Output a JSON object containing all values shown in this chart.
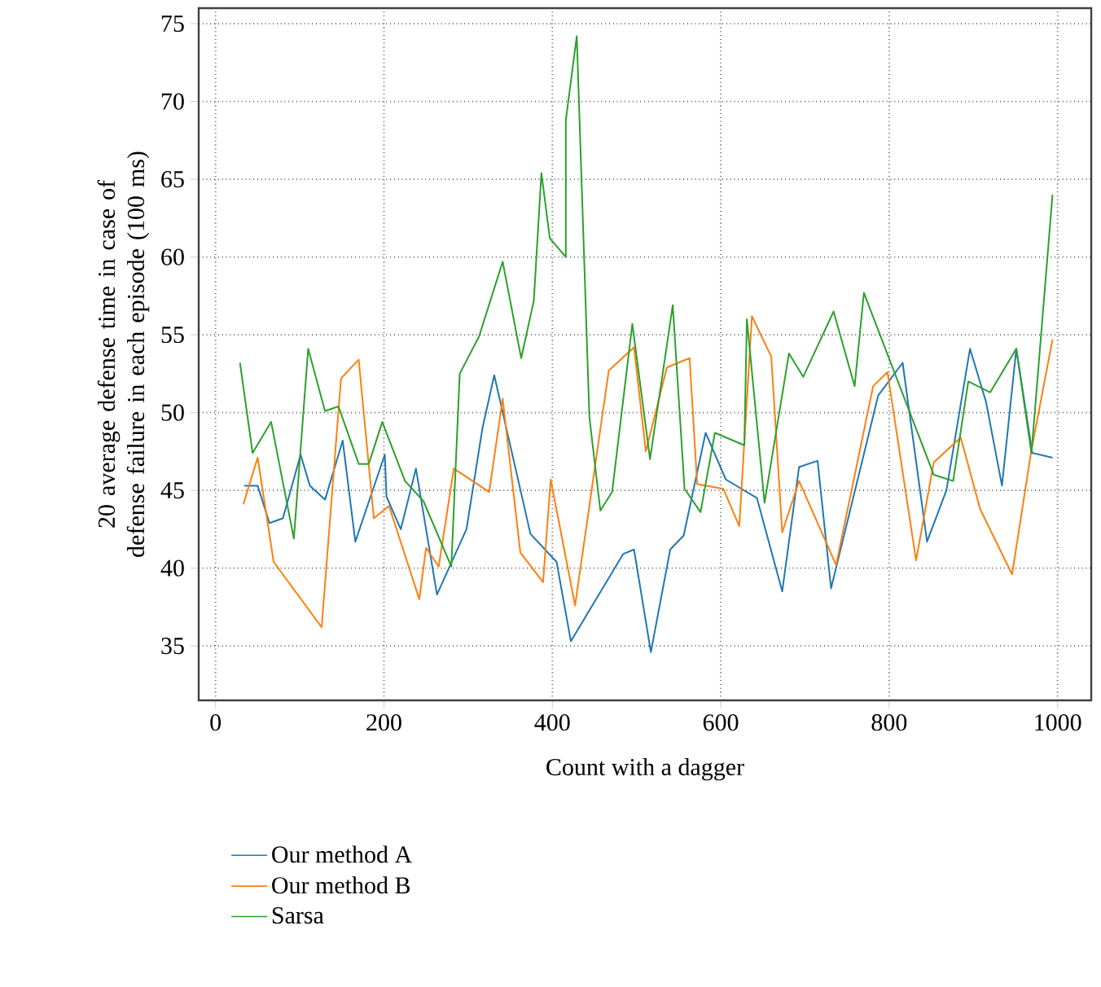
{
  "chart_data": {
    "type": "line",
    "xlabel": "Count with a dagger",
    "ylabel": "20 average defense time in case of defense failure in each episode (100 ms)",
    "xlim": [
      -20,
      1040
    ],
    "ylim": [
      31.5,
      76
    ],
    "xticks": [
      0,
      200,
      400,
      600,
      800,
      1000
    ],
    "yticks": [
      35,
      40,
      45,
      50,
      55,
      60,
      65,
      70,
      75
    ],
    "grid": true,
    "legend": "bottom",
    "marker": "none",
    "line_style": "solid",
    "series": [
      {
        "name": "Our method A",
        "color": "#1f77b4",
        "x": [
          34,
          50,
          64,
          80,
          101,
          112,
          130,
          151,
          166,
          201,
          203,
          220,
          238,
          263,
          298,
          317,
          331,
          374,
          405,
          422,
          484,
          497,
          517,
          540,
          556,
          582,
          606,
          643,
          673,
          693,
          715,
          731,
          787,
          816,
          845,
          868,
          896,
          915,
          934,
          951,
          970,
          994
        ],
        "values": [
          45.3,
          45.3,
          42.9,
          43.2,
          47.3,
          45.3,
          44.4,
          48.2,
          41.7,
          47.3,
          44.6,
          42.5,
          46.4,
          38.3,
          42.5,
          49.0,
          52.4,
          42.2,
          40.4,
          35.3,
          40.9,
          41.2,
          34.6,
          41.2,
          42.1,
          48.7,
          45.7,
          44.5,
          38.5,
          46.5,
          46.9,
          38.7,
          51.1,
          53.2,
          41.7,
          45.0,
          54.1,
          50.7,
          45.3,
          54.1,
          47.4,
          47.1
        ]
      },
      {
        "name": "Our method B",
        "color": "#ff7f0e",
        "x": [
          33,
          50,
          69,
          126,
          149,
          170,
          188,
          206,
          242,
          250,
          265,
          283,
          325,
          341,
          362,
          389,
          398,
          427,
          467,
          497,
          511,
          536,
          563,
          572,
          603,
          622,
          637,
          660,
          673,
          693,
          737,
          781,
          798,
          832,
          853,
          885,
          908,
          946,
          969,
          994
        ],
        "values": [
          44.1,
          47.1,
          40.4,
          36.2,
          52.2,
          53.4,
          43.2,
          44.0,
          38.0,
          41.3,
          40.1,
          46.4,
          44.9,
          50.9,
          41.0,
          39.1,
          45.7,
          37.6,
          52.7,
          54.2,
          47.5,
          52.9,
          53.5,
          45.4,
          45.1,
          42.7,
          56.2,
          53.6,
          42.3,
          45.6,
          40.2,
          51.7,
          52.6,
          40.5,
          46.8,
          48.4,
          43.8,
          39.6,
          47.6,
          54.7
        ]
      },
      {
        "name": "Sarsa",
        "color": "#2ca02c",
        "x": [
          29,
          44,
          66,
          93,
          110,
          130,
          146,
          170,
          182,
          198,
          225,
          247,
          280,
          290,
          313,
          341,
          363,
          378,
          387,
          397,
          416,
          416,
          429,
          444,
          457,
          471,
          495,
          516,
          543,
          557,
          576,
          593,
          628,
          631,
          652,
          681,
          698,
          734,
          759,
          770,
          853,
          876,
          894,
          920,
          951,
          969,
          994
        ],
        "values": [
          53.2,
          47.4,
          49.4,
          41.9,
          54.1,
          50.1,
          50.4,
          46.7,
          46.7,
          49.4,
          45.6,
          44.3,
          40.1,
          52.5,
          54.9,
          59.7,
          53.5,
          57.2,
          65.4,
          61.2,
          60.0,
          68.8,
          74.2,
          49.7,
          43.7,
          44.9,
          55.7,
          47.0,
          56.9,
          45.1,
          43.6,
          48.7,
          47.9,
          56.0,
          44.2,
          53.8,
          52.3,
          56.5,
          51.7,
          57.7,
          46.0,
          45.6,
          52.0,
          51.3,
          54.1,
          47.4,
          64.0
        ]
      }
    ]
  }
}
